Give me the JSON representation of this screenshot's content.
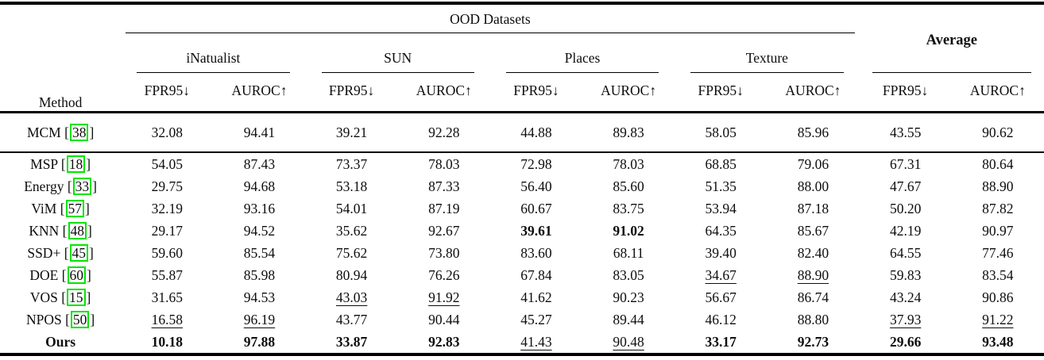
{
  "table": {
    "header": {
      "method": "Method",
      "ood": "OOD Datasets",
      "average": "Average",
      "groups": [
        "iNatualist",
        "SUN",
        "Places",
        "Texture"
      ],
      "metrics": [
        "FPR95↓",
        "AUROC↑"
      ]
    },
    "colors": {
      "citation_box": "#00e400"
    },
    "rows": [
      {
        "method": "MCM",
        "cite": "38",
        "sep": true,
        "cells": [
          [
            "32.08"
          ],
          [
            "94.41"
          ],
          [
            "39.21"
          ],
          [
            "92.28"
          ],
          [
            "44.88"
          ],
          [
            "89.83"
          ],
          [
            "58.05"
          ],
          [
            "85.96"
          ],
          [
            "43.55"
          ],
          [
            "90.62"
          ]
        ]
      },
      {
        "method": "MSP",
        "cite": "18",
        "cells": [
          [
            "54.05"
          ],
          [
            "87.43"
          ],
          [
            "73.37"
          ],
          [
            "78.03"
          ],
          [
            "72.98"
          ],
          [
            "78.03"
          ],
          [
            "68.85"
          ],
          [
            "79.06"
          ],
          [
            "67.31"
          ],
          [
            "80.64"
          ]
        ]
      },
      {
        "method": "Energy",
        "cite": "33",
        "cells": [
          [
            "29.75"
          ],
          [
            "94.68"
          ],
          [
            "53.18"
          ],
          [
            "87.33"
          ],
          [
            "56.40"
          ],
          [
            "85.60"
          ],
          [
            "51.35"
          ],
          [
            "88.00"
          ],
          [
            "47.67"
          ],
          [
            "88.90"
          ]
        ]
      },
      {
        "method": "ViM",
        "cite": "57",
        "cells": [
          [
            "32.19"
          ],
          [
            "93.16"
          ],
          [
            "54.01"
          ],
          [
            "87.19"
          ],
          [
            "60.67"
          ],
          [
            "83.75"
          ],
          [
            "53.94"
          ],
          [
            "87.18"
          ],
          [
            "50.20"
          ],
          [
            "87.82"
          ]
        ]
      },
      {
        "method": "KNN",
        "cite": "48",
        "cells": [
          [
            "29.17"
          ],
          [
            "94.52"
          ],
          [
            "35.62"
          ],
          [
            "92.67"
          ],
          [
            "39.61",
            "b"
          ],
          [
            "91.02",
            "b"
          ],
          [
            "64.35"
          ],
          [
            "85.67"
          ],
          [
            "42.19"
          ],
          [
            "90.97"
          ]
        ]
      },
      {
        "method": "SSD+",
        "cite": "45",
        "cells": [
          [
            "59.60"
          ],
          [
            "85.54"
          ],
          [
            "75.62"
          ],
          [
            "73.80"
          ],
          [
            "83.60"
          ],
          [
            "68.11"
          ],
          [
            "39.40"
          ],
          [
            "82.40"
          ],
          [
            "64.55"
          ],
          [
            "77.46"
          ]
        ]
      },
      {
        "method": "DOE",
        "cite": "60",
        "cells": [
          [
            "55.87"
          ],
          [
            "85.98"
          ],
          [
            "80.94"
          ],
          [
            "76.26"
          ],
          [
            "67.84"
          ],
          [
            "83.05"
          ],
          [
            "34.67",
            "u"
          ],
          [
            "88.90",
            "u"
          ],
          [
            "59.83"
          ],
          [
            "83.54"
          ]
        ]
      },
      {
        "method": "VOS",
        "cite": "15",
        "cells": [
          [
            "31.65"
          ],
          [
            "94.53"
          ],
          [
            "43.03",
            "u"
          ],
          [
            "91.92",
            "u"
          ],
          [
            "41.62"
          ],
          [
            "90.23"
          ],
          [
            "56.67"
          ],
          [
            "86.74"
          ],
          [
            "43.24"
          ],
          [
            "90.86"
          ]
        ]
      },
      {
        "method": "NPOS",
        "cite": "50",
        "cells": [
          [
            "16.58",
            "u"
          ],
          [
            "96.19",
            "u"
          ],
          [
            "43.77"
          ],
          [
            "90.44"
          ],
          [
            "45.27"
          ],
          [
            "89.44"
          ],
          [
            "46.12"
          ],
          [
            "88.80"
          ],
          [
            "37.93",
            "u"
          ],
          [
            "91.22",
            "u"
          ]
        ]
      },
      {
        "method": "Ours",
        "bold": true,
        "cells": [
          [
            "10.18",
            "b"
          ],
          [
            "97.88",
            "b"
          ],
          [
            "33.87",
            "b"
          ],
          [
            "92.83",
            "b"
          ],
          [
            "41.43",
            "u"
          ],
          [
            "90.48",
            "u"
          ],
          [
            "33.17",
            "b"
          ],
          [
            "92.73",
            "b"
          ],
          [
            "29.66",
            "b"
          ],
          [
            "93.48",
            "b"
          ]
        ]
      }
    ]
  }
}
